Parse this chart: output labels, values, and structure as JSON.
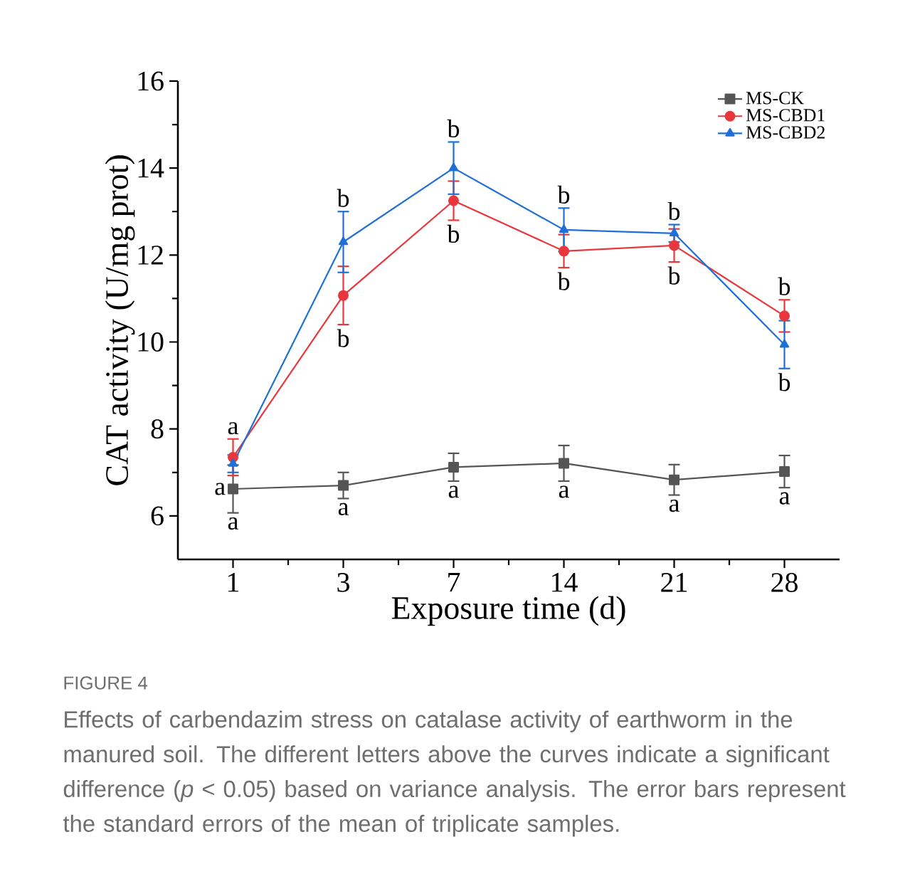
{
  "chart_data": {
    "type": "line",
    "xlabel": "Exposure time (d)",
    "ylabel": "CAT activity (U/mg prot)",
    "categories": [
      "1",
      "3",
      "7",
      "14",
      "21",
      "28"
    ],
    "ylim": [
      5,
      16
    ],
    "yticks": [
      6,
      8,
      10,
      12,
      14,
      16
    ],
    "legend": "top right",
    "line_style": "solid",
    "series": [
      {
        "name": "MS-CK",
        "color": "#555555",
        "marker": "square",
        "values": [
          6.62,
          6.7,
          7.12,
          7.21,
          6.83,
          7.02
        ],
        "errors": [
          0.55,
          0.3,
          0.32,
          0.41,
          0.35,
          0.37
        ]
      },
      {
        "name": "MS-CBD1",
        "color": "#e8383d",
        "marker": "circle",
        "values": [
          7.35,
          11.07,
          13.25,
          12.09,
          12.22,
          10.6
        ],
        "errors": [
          0.42,
          0.67,
          0.45,
          0.38,
          0.38,
          0.37
        ]
      },
      {
        "name": "MS-CBD2",
        "color": "#1f6fd8",
        "marker": "triangle",
        "values": [
          7.2,
          12.3,
          14.0,
          12.58,
          12.5,
          9.94
        ],
        "errors": [
          0.2,
          0.7,
          0.6,
          0.5,
          0.2,
          0.55
        ]
      }
    ],
    "annotations": [
      {
        "text": "a",
        "x": "1",
        "y": 7.35
      },
      {
        "text": "a",
        "x": "1",
        "y": 6.62
      },
      {
        "text": "a",
        "x": "1",
        "y": 6.62
      },
      {
        "text": "b",
        "x": "3",
        "y": 12.3
      },
      {
        "text": "b",
        "x": "3",
        "y": 11.07
      },
      {
        "text": "a",
        "x": "3",
        "y": 6.7
      },
      {
        "text": "b",
        "x": "7",
        "y": 14.0
      },
      {
        "text": "b",
        "x": "7",
        "y": 13.25
      },
      {
        "text": "a",
        "x": "7",
        "y": 7.12
      },
      {
        "text": "b",
        "x": "14",
        "y": 12.58
      },
      {
        "text": "b",
        "x": "14",
        "y": 12.09
      },
      {
        "text": "a",
        "x": "14",
        "y": 7.21
      },
      {
        "text": "b",
        "x": "21",
        "y": 12.5
      },
      {
        "text": "b",
        "x": "21",
        "y": 12.22
      },
      {
        "text": "a",
        "x": "21",
        "y": 6.83
      },
      {
        "text": "b",
        "x": "28",
        "y": 10.6
      },
      {
        "text": "b",
        "x": "28",
        "y": 9.94
      },
      {
        "text": "a",
        "x": "28",
        "y": 7.02
      },
      "FIGURE 4",
      "Effects of carbendazim stress on catalase activity of earthworm in the manured soil. The different letters above the curves indicate a significant difference (*p* < 0.05) based on variance analysis. The error bars represent the standard errors of the mean of triplicate samples."
    ]
  }
}
